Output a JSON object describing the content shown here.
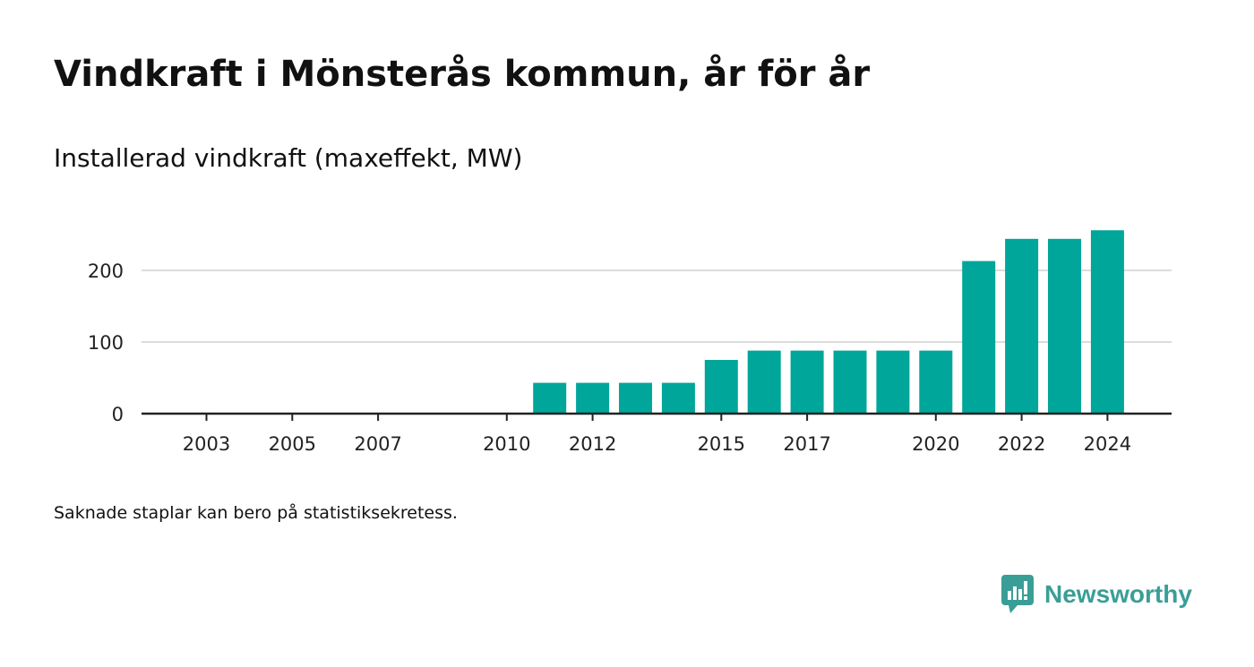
{
  "header": {
    "title": "Vindkraft i Mönsterås kommun, år för år",
    "subtitle": "Installerad vindkraft (maxeffekt, MW)"
  },
  "footer": {
    "note": "Saknade staplar kan bero på statistiksekretess.",
    "brand": "Newsworthy"
  },
  "colors": {
    "bar": "#00a69a",
    "gridline": "#dcdcdc",
    "axis": "#222222",
    "brand": "#3a9e97"
  },
  "chart_data": {
    "type": "bar",
    "title": "Vindkraft i Mönsterås kommun, år för år",
    "subtitle": "Installerad vindkraft (maxeffekt, MW)",
    "xlabel": "",
    "ylabel": "",
    "categories": [
      2003,
      2004,
      2005,
      2006,
      2007,
      2008,
      2009,
      2010,
      2011,
      2012,
      2013,
      2014,
      2015,
      2016,
      2017,
      2018,
      2019,
      2020,
      2021,
      2022,
      2023,
      2024
    ],
    "values": [
      0,
      0,
      0,
      0,
      0,
      0,
      0,
      0,
      43,
      43,
      43,
      43,
      75,
      88,
      88,
      88,
      88,
      88,
      213,
      244,
      244,
      256
    ],
    "x_tick_labels": [
      "2003",
      "2005",
      "2007",
      "2010",
      "2012",
      "2015",
      "2017",
      "2020",
      "2022",
      "2024"
    ],
    "y_ticks": [
      0,
      100,
      200
    ],
    "ylim": [
      0,
      256
    ],
    "grid": true,
    "legend": "none"
  }
}
